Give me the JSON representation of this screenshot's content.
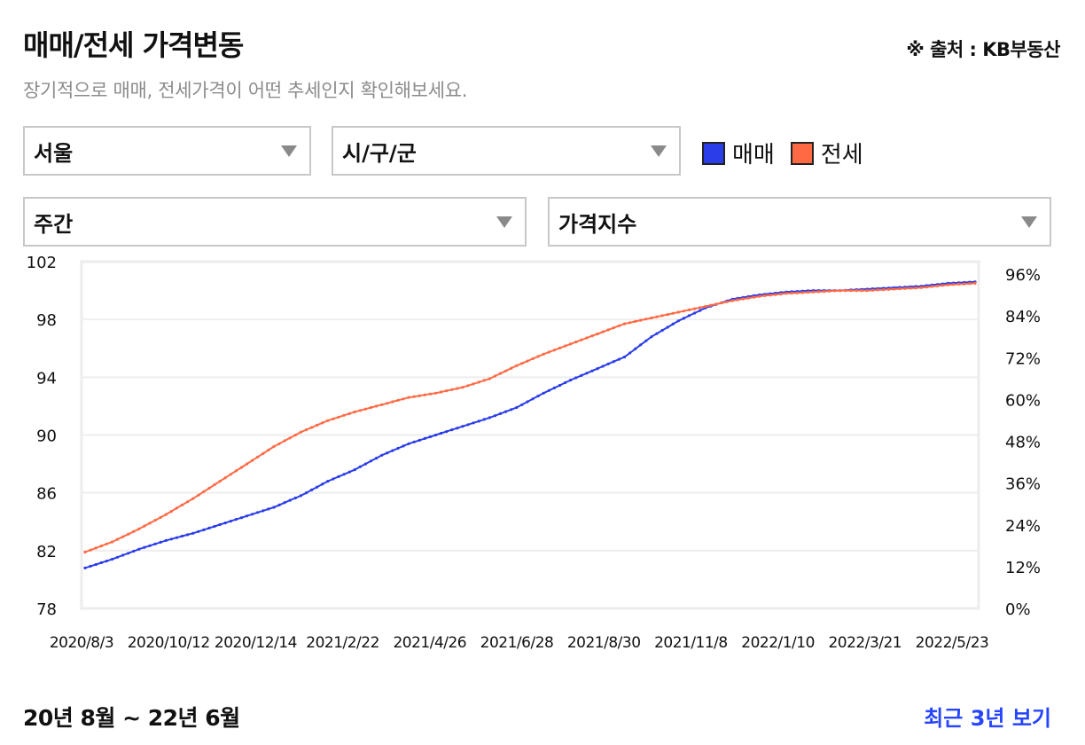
{
  "header": {
    "title": "매매/전세 가격변동",
    "source": "※ 출처 : KB부동산",
    "subtitle": "장기적으로 매매, 전세가격이 어떤 추세인지 확인해보세요."
  },
  "filters": {
    "region": "서울",
    "district": "시/구/군",
    "period": "주간",
    "metric": "가격지수"
  },
  "legend": [
    {
      "name": "매매",
      "color": "#2b3de8"
    },
    {
      "name": "전세",
      "color": "#ff6a45"
    }
  ],
  "footer": {
    "range": "20년 8월 ~ 22년 6월",
    "recent_button": "최근 3년 보기"
  },
  "chart_data": {
    "type": "line",
    "x_tick_labels": [
      "2020/8/3",
      "2020/10/12",
      "2020/12/14",
      "2021/2/22",
      "2021/4/26",
      "2021/6/28",
      "2021/8/30",
      "2021/11/8",
      "2022/1/10",
      "2022/3/21",
      "2022/5/23"
    ],
    "y_left_ticks": [
      "102",
      "98",
      "94",
      "90",
      "86",
      "82",
      "78"
    ],
    "y_right_ticks": [
      "96%",
      "84%",
      "72%",
      "60%",
      "48%",
      "36%",
      "24%",
      "12%",
      "0%"
    ],
    "ylim": [
      78,
      102
    ],
    "grid": true,
    "series": [
      {
        "name": "매매",
        "color": "#2b3de8",
        "points": [
          [
            0,
            80.8
          ],
          [
            5,
            81.4
          ],
          [
            10,
            82.1
          ],
          [
            15,
            82.7
          ],
          [
            20,
            83.2
          ],
          [
            25,
            83.8
          ],
          [
            30,
            84.4
          ],
          [
            35,
            85.0
          ],
          [
            40,
            85.8
          ],
          [
            45,
            86.8
          ],
          [
            50,
            87.6
          ],
          [
            55,
            88.6
          ],
          [
            60,
            89.4
          ],
          [
            65,
            90.0
          ],
          [
            70,
            90.6
          ],
          [
            75,
            91.2
          ],
          [
            80,
            91.9
          ],
          [
            85,
            92.9
          ],
          [
            90,
            93.8
          ],
          [
            95,
            94.6
          ],
          [
            100,
            95.4
          ],
          [
            105,
            96.8
          ],
          [
            110,
            97.9
          ],
          [
            115,
            98.8
          ],
          [
            120,
            99.4
          ],
          [
            125,
            99.7
          ],
          [
            130,
            99.9
          ],
          [
            135,
            100.0
          ],
          [
            140,
            100.0
          ],
          [
            145,
            100.1
          ],
          [
            150,
            100.2
          ],
          [
            155,
            100.3
          ],
          [
            160,
            100.5
          ],
          [
            165,
            100.6
          ]
        ]
      },
      {
        "name": "전세",
        "color": "#ff6a45",
        "points": [
          [
            0,
            81.9
          ],
          [
            5,
            82.6
          ],
          [
            10,
            83.5
          ],
          [
            15,
            84.5
          ],
          [
            20,
            85.6
          ],
          [
            25,
            86.8
          ],
          [
            30,
            88.0
          ],
          [
            35,
            89.2
          ],
          [
            40,
            90.2
          ],
          [
            45,
            91.0
          ],
          [
            50,
            91.6
          ],
          [
            55,
            92.1
          ],
          [
            60,
            92.6
          ],
          [
            65,
            92.9
          ],
          [
            70,
            93.3
          ],
          [
            75,
            93.9
          ],
          [
            80,
            94.8
          ],
          [
            85,
            95.6
          ],
          [
            90,
            96.3
          ],
          [
            95,
            97.0
          ],
          [
            100,
            97.7
          ],
          [
            105,
            98.1
          ],
          [
            110,
            98.5
          ],
          [
            115,
            98.9
          ],
          [
            120,
            99.3
          ],
          [
            125,
            99.6
          ],
          [
            130,
            99.8
          ],
          [
            135,
            99.9
          ],
          [
            140,
            100.0
          ],
          [
            145,
            100.0
          ],
          [
            150,
            100.1
          ],
          [
            155,
            100.2
          ],
          [
            160,
            100.4
          ],
          [
            165,
            100.5
          ]
        ]
      }
    ]
  }
}
